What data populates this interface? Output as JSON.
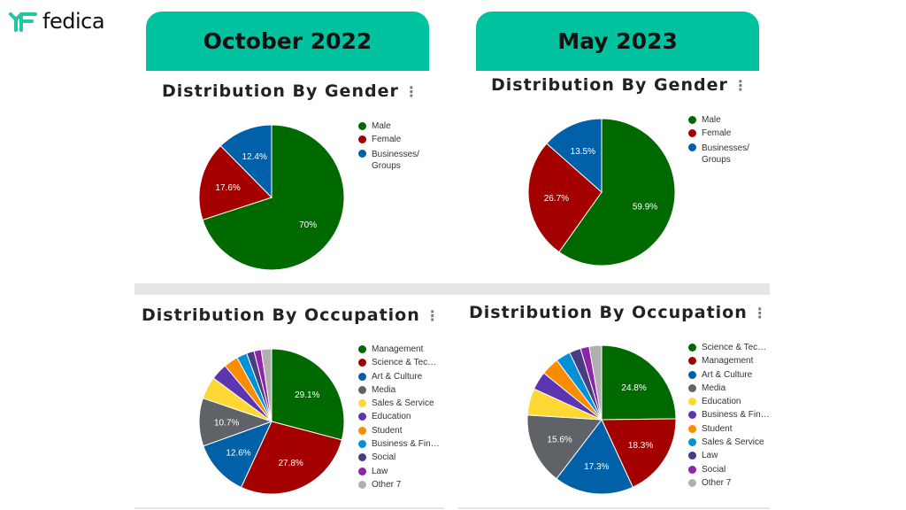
{
  "logo": {
    "text": "fedica",
    "color": "#1fc7a5"
  },
  "panels": [
    {
      "header": "October 2022"
    },
    {
      "header": "May 2023"
    }
  ],
  "chart_data": [
    {
      "type": "pie",
      "title": "Distribution By Gender",
      "period": "October 2022",
      "categories": [
        "Male",
        "Female",
        "Businesses/ Groups"
      ],
      "values": [
        70,
        17.6,
        12.4
      ],
      "labels": [
        "70%",
        "17.6%",
        "12.4%"
      ],
      "colors": [
        "#006a00",
        "#a50000",
        "#0060a8"
      ],
      "legend": "right"
    },
    {
      "type": "pie",
      "title": "Distribution By Gender",
      "period": "May 2023",
      "categories": [
        "Male",
        "Female",
        "Businesses/ Groups"
      ],
      "values": [
        59.9,
        26.7,
        13.5
      ],
      "labels": [
        "59.9%",
        "26.7%",
        "13.5%"
      ],
      "colors": [
        "#006a00",
        "#a50000",
        "#0060a8"
      ],
      "legend": "right"
    },
    {
      "type": "pie",
      "title": "Distribution By Occupation",
      "period": "October 2022",
      "categories": [
        "Management",
        "Science & Tec…",
        "Art & Culture",
        "Media",
        "Sales & Service",
        "Education",
        "Student",
        "Business & Fin…",
        "Social",
        "Law",
        "Other 7"
      ],
      "values": [
        29.1,
        27.8,
        12.6,
        10.7,
        5.0,
        3.7,
        3.2,
        2.3,
        1.7,
        1.6,
        2.3
      ],
      "labels": [
        "29.1%",
        "27.8%",
        "12.6%",
        "10.7%",
        "",
        "",
        "",
        "",
        "",
        "",
        ""
      ],
      "colors": [
        "#006a00",
        "#a50000",
        "#0060a8",
        "#5f6368",
        "#fdd835",
        "#5e35b1",
        "#fb8c00",
        "#0391d6",
        "#4a3b83",
        "#8e24aa",
        "#b0b0b0"
      ],
      "legend": "right"
    },
    {
      "type": "pie",
      "title": "Distribution By Occupation",
      "period": "May 2023",
      "categories": [
        "Science & Tec…",
        "Management",
        "Art & Culture",
        "Media",
        "Education",
        "Business & Fin…",
        "Student",
        "Sales & Service",
        "Law",
        "Social",
        "Other 7"
      ],
      "values": [
        24.8,
        18.3,
        17.3,
        15.6,
        5.8,
        4.0,
        3.9,
        3.2,
        2.5,
        1.9,
        2.7
      ],
      "labels": [
        "24.8%",
        "18.3%",
        "17.3%",
        "15.6%",
        "",
        "",
        "",
        "",
        "",
        "",
        ""
      ],
      "colors": [
        "#006a00",
        "#a50000",
        "#0060a8",
        "#5f6368",
        "#fdd835",
        "#5e35b1",
        "#fb8c00",
        "#0391d6",
        "#4a3b83",
        "#8e24aa",
        "#b0b0b0"
      ],
      "legend": "right"
    }
  ]
}
